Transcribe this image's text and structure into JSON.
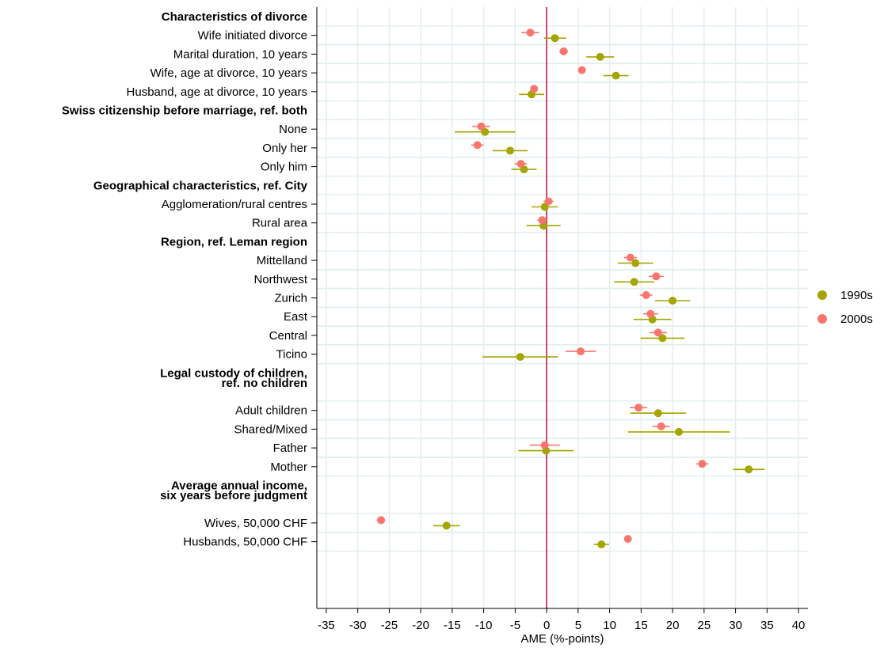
{
  "chart_data": {
    "type": "scatter",
    "subtype": "coefficient-plot",
    "orientation": "horizontal",
    "xlabel": "AME (%-points)",
    "xlim": [
      -36.5,
      41.5
    ],
    "xticks": [
      -35,
      -30,
      -25,
      -20,
      -15,
      -10,
      -5,
      0,
      5,
      10,
      15,
      20,
      25,
      30,
      35,
      40
    ],
    "reference_line": 0,
    "grid": true,
    "legend_position": "right",
    "series": [
      {
        "name": "1990s",
        "color": "#A3A500",
        "marker": "circle"
      },
      {
        "name": "2000s",
        "color": "#F8766D",
        "marker": "circle"
      }
    ],
    "rows": [
      {
        "label": "Characteristics of divorce",
        "header": true
      },
      {
        "label": "Wife initiated divorce",
        "estimates": {
          "1990s": {
            "x": 1.3,
            "lo": -0.4,
            "hi": 3.1
          },
          "2000s": {
            "x": -2.6,
            "lo": -4.0,
            "hi": -1.2
          }
        }
      },
      {
        "label": "Marital duration, 10 years",
        "estimates": {
          "1990s": {
            "x": 8.5,
            "lo": 6.3,
            "hi": 10.7
          },
          "2000s": {
            "x": 2.7,
            "lo": 2.0,
            "hi": 3.4
          }
        }
      },
      {
        "label": "Wife, age at divorce, 10 years",
        "estimates": {
          "1990s": {
            "x": 11.0,
            "lo": 9.0,
            "hi": 13.0
          },
          "2000s": {
            "x": 5.6,
            "lo": 5.0,
            "hi": 6.2
          }
        }
      },
      {
        "label": "Husband, age at divorce, 10 years",
        "estimates": {
          "1990s": {
            "x": -2.4,
            "lo": -4.4,
            "hi": -0.4
          },
          "2000s": {
            "x": -2.0,
            "lo": -2.6,
            "hi": -1.4
          }
        }
      },
      {
        "label": "Swiss citizenship before marriage, ref. both",
        "header": true
      },
      {
        "label": "None",
        "estimates": {
          "1990s": {
            "x": -9.8,
            "lo": -14.6,
            "hi": -5.0
          },
          "2000s": {
            "x": -10.4,
            "lo": -11.8,
            "hi": -9.0
          }
        }
      },
      {
        "label": "Only her",
        "estimates": {
          "1990s": {
            "x": -5.8,
            "lo": -8.6,
            "hi": -3.0
          },
          "2000s": {
            "x": -11.0,
            "lo": -12.0,
            "hi": -10.0
          }
        }
      },
      {
        "label": "Only him",
        "estimates": {
          "1990s": {
            "x": -3.6,
            "lo": -5.6,
            "hi": -1.6
          },
          "2000s": {
            "x": -4.1,
            "lo": -5.1,
            "hi": -3.1
          }
        }
      },
      {
        "label": "Geographical characteristics, ref. City",
        "header": true
      },
      {
        "label": "Agglomeration/rural centres",
        "estimates": {
          "1990s": {
            "x": -0.3,
            "lo": -2.4,
            "hi": 1.8
          },
          "2000s": {
            "x": 0.3,
            "lo": -0.5,
            "hi": 1.1
          }
        }
      },
      {
        "label": "Rural area",
        "estimates": {
          "1990s": {
            "x": -0.5,
            "lo": -3.2,
            "hi": 2.2
          },
          "2000s": {
            "x": -0.7,
            "lo": -1.5,
            "hi": 0.1
          }
        }
      },
      {
        "label": "Region, ref. Leman region",
        "header": true
      },
      {
        "label": "Mittelland",
        "estimates": {
          "1990s": {
            "x": 14.1,
            "lo": 11.3,
            "hi": 16.9
          },
          "2000s": {
            "x": 13.3,
            "lo": 12.3,
            "hi": 14.3
          }
        }
      },
      {
        "label": "Northwest",
        "estimates": {
          "1990s": {
            "x": 13.9,
            "lo": 10.7,
            "hi": 17.1
          },
          "2000s": {
            "x": 17.4,
            "lo": 16.2,
            "hi": 18.6
          }
        }
      },
      {
        "label": "Zurich",
        "estimates": {
          "1990s": {
            "x": 20.0,
            "lo": 17.2,
            "hi": 22.8
          },
          "2000s": {
            "x": 15.8,
            "lo": 14.8,
            "hi": 16.8
          }
        }
      },
      {
        "label": "East",
        "estimates": {
          "1990s": {
            "x": 16.8,
            "lo": 13.8,
            "hi": 19.8
          },
          "2000s": {
            "x": 16.5,
            "lo": 15.3,
            "hi": 17.7
          }
        }
      },
      {
        "label": "Central",
        "estimates": {
          "1990s": {
            "x": 18.4,
            "lo": 14.9,
            "hi": 21.9
          },
          "2000s": {
            "x": 17.7,
            "lo": 16.3,
            "hi": 19.1
          }
        }
      },
      {
        "label": "Ticino",
        "estimates": {
          "1990s": {
            "x": -4.2,
            "lo": -10.2,
            "hi": 1.8
          },
          "2000s": {
            "x": 5.4,
            "lo": 3.0,
            "hi": 7.8
          }
        }
      },
      {
        "label": "Legal custody of children,",
        "label2": "ref. no children",
        "header": true
      },
      {
        "label": "Adult children",
        "estimates": {
          "1990s": {
            "x": 17.7,
            "lo": 13.3,
            "hi": 22.1
          },
          "2000s": {
            "x": 14.6,
            "lo": 13.2,
            "hi": 16.0
          }
        }
      },
      {
        "label": "Shared/Mixed",
        "estimates": {
          "1990s": {
            "x": 21.0,
            "lo": 12.9,
            "hi": 29.1
          },
          "2000s": {
            "x": 18.2,
            "lo": 16.8,
            "hi": 19.6
          }
        }
      },
      {
        "label": "Father",
        "estimates": {
          "1990s": {
            "x": -0.1,
            "lo": -4.5,
            "hi": 4.3
          },
          "2000s": {
            "x": -0.3,
            "lo": -2.7,
            "hi": 2.1
          }
        }
      },
      {
        "label": "Mother",
        "estimates": {
          "1990s": {
            "x": 32.1,
            "lo": 29.6,
            "hi": 34.6
          },
          "2000s": {
            "x": 24.7,
            "lo": 23.7,
            "hi": 25.7
          }
        }
      },
      {
        "label": "Average annual income,",
        "label2": "six years before judgment",
        "header": true
      },
      {
        "label": "Wives, 50,000 CHF",
        "estimates": {
          "1990s": {
            "x": -15.9,
            "lo": -18.0,
            "hi": -13.8
          },
          "2000s": {
            "x": -26.3,
            "lo": -27.0,
            "hi": -25.6
          }
        }
      },
      {
        "label": "Husbands, 50,000 CHF",
        "estimates": {
          "1990s": {
            "x": 8.7,
            "lo": 7.5,
            "hi": 9.9
          },
          "2000s": {
            "x": 12.9,
            "lo": 12.5,
            "hi": 13.3
          }
        }
      }
    ]
  }
}
